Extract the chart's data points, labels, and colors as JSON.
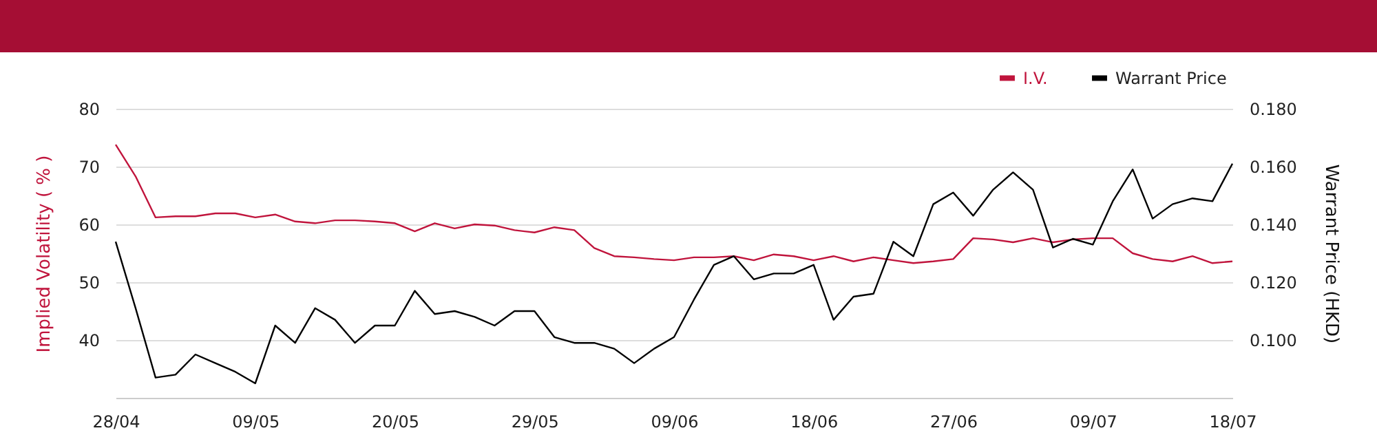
{
  "chart_data": {
    "type": "line",
    "categories": [
      "28/04",
      null,
      null,
      null,
      null,
      null,
      null,
      "09/05",
      null,
      null,
      null,
      null,
      null,
      null,
      "20/05",
      null,
      null,
      null,
      null,
      null,
      null,
      "29/05",
      null,
      null,
      null,
      null,
      null,
      null,
      "09/06",
      null,
      null,
      null,
      null,
      null,
      null,
      "18/06",
      null,
      null,
      null,
      null,
      null,
      null,
      "27/06",
      null,
      null,
      null,
      null,
      null,
      null,
      "09/07",
      null,
      null,
      null,
      null,
      null,
      null,
      "18/07"
    ],
    "series": [
      {
        "name": "I.V.",
        "color": "#c0143c",
        "values": [
          73.8,
          68.3,
          61.2,
          61.4,
          61.4,
          61.9,
          61.9,
          61.2,
          61.7,
          60.5,
          60.2,
          60.7,
          60.7,
          60.5,
          60.2,
          58.8,
          60.2,
          59.3,
          60.0,
          59.8,
          59.0,
          58.6,
          59.5,
          59.0,
          55.9,
          54.5,
          54.3,
          54.0,
          53.8,
          54.3,
          54.3,
          54.5,
          53.8,
          54.8,
          54.5,
          53.8,
          54.5,
          53.6,
          54.3,
          53.8,
          53.3,
          53.6,
          54.0,
          57.6,
          57.4,
          56.9,
          57.6,
          56.9,
          57.4,
          57.6,
          57.6,
          55.0,
          54.0,
          53.6,
          54.5,
          53.3,
          53.6
        ]
      },
      {
        "name": "Warrant Price",
        "color": "#000000",
        "axis": "y2",
        "values": [
          0.134,
          0.111,
          0.087,
          0.088,
          0.095,
          0.092,
          0.089,
          0.085,
          0.105,
          0.099,
          0.111,
          0.107,
          0.099,
          0.105,
          0.105,
          0.117,
          0.109,
          0.11,
          0.108,
          0.105,
          0.11,
          0.11,
          0.101,
          0.099,
          0.099,
          0.097,
          0.092,
          0.097,
          0.101,
          0.114,
          0.126,
          0.129,
          0.121,
          0.123,
          0.123,
          0.126,
          0.107,
          0.115,
          0.116,
          0.134,
          0.129,
          0.147,
          0.151,
          0.143,
          0.152,
          0.158,
          0.152,
          0.132,
          0.135,
          0.133,
          0.148,
          0.159,
          0.142,
          0.147,
          0.149,
          0.148,
          0.161
        ]
      }
    ],
    "ylabel": "Implied Volatility ( % )",
    "y2label": "Warrant Price (HKD)",
    "ylim": [
      30,
      80
    ],
    "yticks": [
      40,
      50,
      60,
      70,
      80
    ],
    "y2lim": [
      0.08,
      0.18
    ],
    "y2ticks": [
      {
        "value": 0.1,
        "label": "0.100"
      },
      {
        "value": 0.12,
        "label": "0.120"
      },
      {
        "value": 0.14,
        "label": "0.140"
      },
      {
        "value": 0.16,
        "label": "0.160"
      },
      {
        "value": 0.18,
        "label": "0.180"
      }
    ],
    "grid": "y",
    "legend": "top right"
  }
}
